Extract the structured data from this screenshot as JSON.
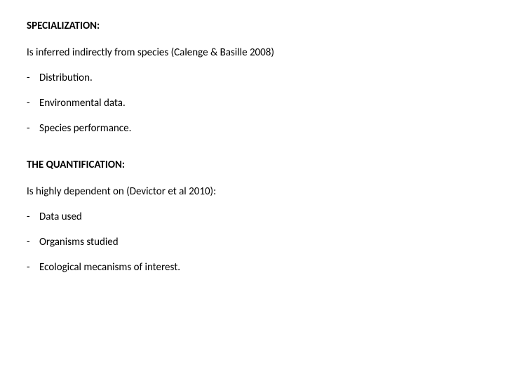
{
  "background_color": "#ffffff",
  "text_color": "#000000",
  "font_family": "Calibri, Arial, sans-serif",
  "heading_fontsize": 15,
  "body_fontsize": 15,
  "sections": [
    {
      "heading": "SPECIALIZATION:",
      "intro": "Is inferred indirectly from species (Calenge & Basille 2008)",
      "items": [
        "Distribution.",
        "Environmental data.",
        "Species performance."
      ]
    },
    {
      "heading": "THE QUANTIFICATION:",
      "intro": "Is highly dependent on (Devictor et al 2010):",
      "items": [
        "Data used",
        "Organisms studied",
        "Ecological mecanisms of interest."
      ]
    }
  ]
}
